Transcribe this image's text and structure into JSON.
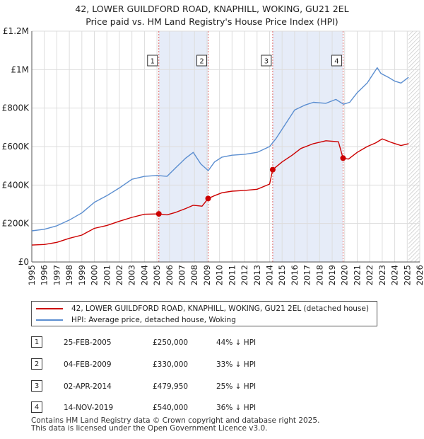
{
  "header": {
    "title_line1": "42, LOWER GUILDFORD ROAD, KNAPHILL, WOKING, GU21 2EL",
    "title_line2": "Price paid vs. HM Land Registry's House Price Index (HPI)"
  },
  "colors": {
    "price_line": "#cc0000",
    "hpi_line": "#5b8ed0",
    "shade": "#dde6f5",
    "vline": "#dd6666",
    "grid": "#dddddd"
  },
  "chart_data": {
    "type": "line",
    "title": "Price paid vs. HM Land Registry's House Price Index (HPI)",
    "xlabel": "",
    "ylabel": "",
    "xlim": [
      1995,
      2026
    ],
    "ylim": [
      0,
      1200000
    ],
    "grid": true,
    "y_ticks": [
      {
        "value": 0,
        "label": "£0"
      },
      {
        "value": 200000,
        "label": "£200K"
      },
      {
        "value": 400000,
        "label": "£400K"
      },
      {
        "value": 600000,
        "label": "£600K"
      },
      {
        "value": 800000,
        "label": "£800K"
      },
      {
        "value": 1000000,
        "label": "£1M"
      },
      {
        "value": 1200000,
        "label": "£1.2M"
      }
    ],
    "x_ticks": [
      "1995",
      "1996",
      "1997",
      "1998",
      "1999",
      "2000",
      "2001",
      "2002",
      "2003",
      "2004",
      "2005",
      "2006",
      "2007",
      "2008",
      "2009",
      "2010",
      "2011",
      "2012",
      "2013",
      "2014",
      "2015",
      "2016",
      "2017",
      "2018",
      "2019",
      "2020",
      "2021",
      "2022",
      "2023",
      "2024",
      "2025",
      "2026"
    ],
    "forecast_from": 2025.1,
    "shaded_periods": [
      [
        2005.15,
        2009.09
      ],
      [
        2014.25,
        2019.87
      ]
    ],
    "series": [
      {
        "name": "42, LOWER GUILDFORD ROAD, KNAPHILL, WOKING, GU21 2EL (detached house)",
        "color": "#cc0000",
        "x": [
          1995.0,
          1996.0,
          1997.0,
          1998.0,
          1999.0,
          2000.0,
          2001.0,
          2002.0,
          2003.0,
          2004.0,
          2005.15,
          2005.8,
          2006.5,
          2007.3,
          2007.9,
          2008.6,
          2009.09,
          2009.6,
          2010.2,
          2011.0,
          2012.0,
          2013.0,
          2014.0,
          2014.25,
          2015.0,
          2015.8,
          2016.5,
          2017.5,
          2018.5,
          2019.5,
          2019.87,
          2020.3,
          2021.0,
          2021.8,
          2022.5,
          2023.0,
          2023.8,
          2024.5,
          2025.1
        ],
        "y": [
          88000,
          91000,
          102000,
          123000,
          140000,
          175000,
          190000,
          212000,
          232000,
          248000,
          250000,
          245000,
          258000,
          278000,
          295000,
          290000,
          330000,
          345000,
          360000,
          368000,
          372000,
          378000,
          405000,
          479950,
          520000,
          555000,
          590000,
          615000,
          630000,
          625000,
          540000,
          535000,
          570000,
          600000,
          620000,
          640000,
          620000,
          605000,
          615000
        ]
      },
      {
        "name": "HPI: Average price, detached house, Woking",
        "color": "#5b8ed0",
        "x": [
          1995.0,
          1996.0,
          1997.0,
          1998.0,
          1999.0,
          2000.0,
          2001.0,
          2002.0,
          2003.0,
          2004.0,
          2005.0,
          2005.8,
          2006.5,
          2007.3,
          2007.9,
          2008.5,
          2009.1,
          2009.6,
          2010.2,
          2011.0,
          2012.0,
          2013.0,
          2014.0,
          2014.5,
          2015.3,
          2016.0,
          2016.8,
          2017.5,
          2018.5,
          2019.3,
          2019.9,
          2020.4,
          2021.0,
          2021.8,
          2022.6,
          2022.9,
          2023.5,
          2024.0,
          2024.5,
          2025.1
        ],
        "y": [
          162000,
          170000,
          188000,
          218000,
          255000,
          310000,
          345000,
          385000,
          430000,
          445000,
          450000,
          445000,
          490000,
          540000,
          570000,
          510000,
          475000,
          520000,
          545000,
          555000,
          560000,
          570000,
          600000,
          640000,
          720000,
          790000,
          815000,
          830000,
          825000,
          845000,
          820000,
          830000,
          880000,
          930000,
          1010000,
          980000,
          960000,
          940000,
          930000,
          960000
        ]
      }
    ],
    "markers": [
      {
        "label": "1",
        "x": 2005.15,
        "y": 250000
      },
      {
        "label": "2",
        "x": 2009.09,
        "y": 330000
      },
      {
        "label": "3",
        "x": 2014.25,
        "y": 479950
      },
      {
        "label": "4",
        "x": 2019.87,
        "y": 540000
      }
    ]
  },
  "legend": {
    "price_label": "42, LOWER GUILDFORD ROAD, KNAPHILL, WOKING, GU21 2EL (detached house)",
    "hpi_label": "HPI: Average price, detached house, Woking"
  },
  "sales": [
    {
      "num": "1",
      "date": "25-FEB-2005",
      "price": "£250,000",
      "hpi": "44% ↓ HPI"
    },
    {
      "num": "2",
      "date": "04-FEB-2009",
      "price": "£330,000",
      "hpi": "33% ↓ HPI"
    },
    {
      "num": "3",
      "date": "02-APR-2014",
      "price": "£479,950",
      "hpi": "25% ↓ HPI"
    },
    {
      "num": "4",
      "date": "14-NOV-2019",
      "price": "£540,000",
      "hpi": "36% ↓ HPI"
    }
  ],
  "footer": {
    "line1": "Contains HM Land Registry data © Crown copyright and database right 2025.",
    "line2": "This data is licensed under the Open Government Licence v3.0."
  }
}
